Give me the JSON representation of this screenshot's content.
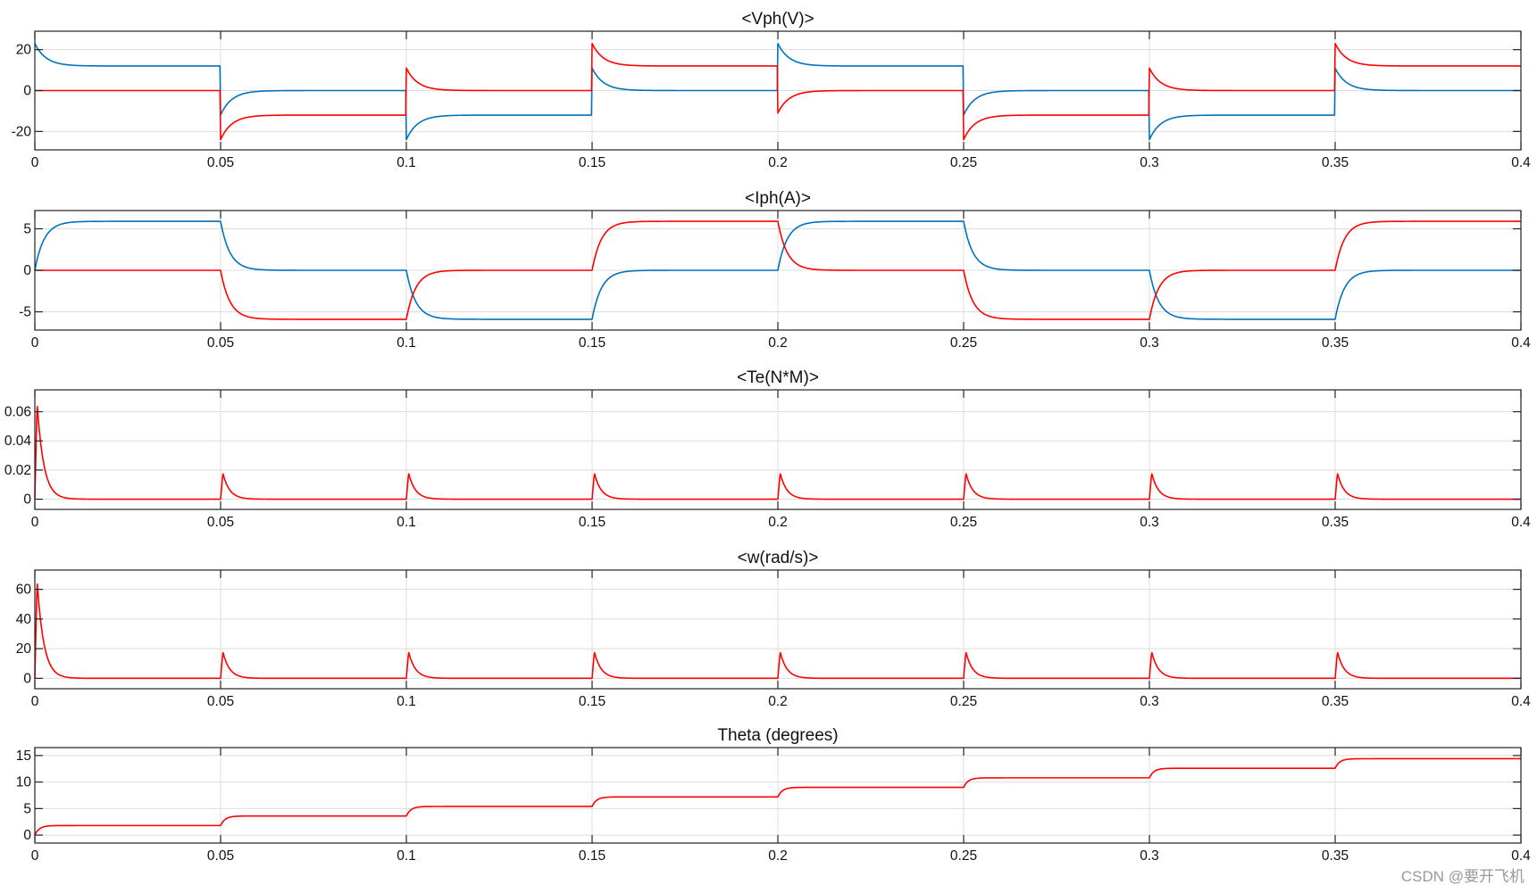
{
  "watermark": "CSDN @要开飞机",
  "colors": {
    "blue": "#0072BD",
    "red": "#FF0000"
  },
  "chart_data": [
    {
      "type": "line",
      "title": "<Vph(V)>",
      "xlim": [
        0,
        0.4
      ],
      "ylim": [
        -29,
        29
      ],
      "xticks": [
        0,
        0.05,
        0.1,
        0.15,
        0.2,
        0.25,
        0.3,
        0.35,
        0.4
      ],
      "xtick_labels": [
        "0",
        "0.05",
        "0.1",
        "0.15",
        "0.2",
        "0.25",
        "0.3",
        "0.35",
        "0.4"
      ],
      "yticks": [
        20,
        0,
        -20
      ],
      "ytick_labels": [
        "20",
        "0",
        "-20"
      ],
      "grid": true,
      "series": [
        {
          "name": "phase voltage (blue)",
          "color": "#0072BD",
          "kind": "segments",
          "tau": 0.003,
          "segments": [
            {
              "t0": 0,
              "t1": 0.05,
              "base": 12,
              "kick": 11
            },
            {
              "t0": 0.05,
              "t1": 0.1,
              "base": 0,
              "kick": -12
            },
            {
              "t0": 0.1,
              "t1": 0.15,
              "base": -12,
              "kick": -12
            },
            {
              "t0": 0.15,
              "t1": 0.2,
              "base": 0,
              "kick": 11
            },
            {
              "t0": 0.2,
              "t1": 0.25,
              "base": 12,
              "kick": 11
            },
            {
              "t0": 0.25,
              "t1": 0.3,
              "base": 0,
              "kick": -12
            },
            {
              "t0": 0.3,
              "t1": 0.35,
              "base": -12,
              "kick": -12
            },
            {
              "t0": 0.35,
              "t1": 0.4,
              "base": 0,
              "kick": 11
            }
          ]
        },
        {
          "name": "phase voltage (red)",
          "color": "#FF0000",
          "kind": "segments",
          "tau": 0.003,
          "segments": [
            {
              "t0": 0,
              "t1": 0.05,
              "base": 0,
              "kick": 0
            },
            {
              "t0": 0.05,
              "t1": 0.1,
              "base": -12,
              "kick": -12
            },
            {
              "t0": 0.1,
              "t1": 0.15,
              "base": 0,
              "kick": 11
            },
            {
              "t0": 0.15,
              "t1": 0.2,
              "base": 12,
              "kick": 11
            },
            {
              "t0": 0.2,
              "t1": 0.25,
              "base": 0,
              "kick": -11
            },
            {
              "t0": 0.25,
              "t1": 0.3,
              "base": -12,
              "kick": -12
            },
            {
              "t0": 0.3,
              "t1": 0.35,
              "base": 0,
              "kick": 11
            },
            {
              "t0": 0.35,
              "t1": 0.4,
              "base": 12,
              "kick": 11
            }
          ]
        }
      ]
    },
    {
      "type": "line",
      "title": "<Iph(A)>",
      "xlim": [
        0,
        0.4
      ],
      "ylim": [
        -7.2,
        7.2
      ],
      "xticks": [
        0,
        0.05,
        0.1,
        0.15,
        0.2,
        0.25,
        0.3,
        0.35,
        0.4
      ],
      "xtick_labels": [
        "0",
        "0.05",
        "0.1",
        "0.15",
        "0.2",
        "0.25",
        "0.3",
        "0.35",
        "0.4"
      ],
      "yticks": [
        5,
        0,
        -5
      ],
      "ytick_labels": [
        "5",
        "0",
        "-5"
      ],
      "grid": true,
      "series": [
        {
          "name": "phase current (blue)",
          "color": "#0072BD",
          "kind": "rl",
          "tau": 0.0025,
          "initial": 0,
          "steps": [
            {
              "t": 0,
              "v": 5.9
            },
            {
              "t": 0.05,
              "v": 0
            },
            {
              "t": 0.1,
              "v": -5.9
            },
            {
              "t": 0.15,
              "v": 0
            },
            {
              "t": 0.2,
              "v": 5.9
            },
            {
              "t": 0.25,
              "v": 0
            },
            {
              "t": 0.3,
              "v": -5.9
            },
            {
              "t": 0.35,
              "v": 0
            }
          ]
        },
        {
          "name": "phase current (red)",
          "color": "#FF0000",
          "kind": "rl",
          "tau": 0.0025,
          "initial": 0,
          "steps": [
            {
              "t": 0,
              "v": 0
            },
            {
              "t": 0.05,
              "v": -5.9
            },
            {
              "t": 0.1,
              "v": 0
            },
            {
              "t": 0.15,
              "v": 5.9
            },
            {
              "t": 0.2,
              "v": 0
            },
            {
              "t": 0.25,
              "v": -5.9
            },
            {
              "t": 0.3,
              "v": 0
            },
            {
              "t": 0.35,
              "v": 5.9
            }
          ]
        }
      ]
    },
    {
      "type": "line",
      "title": "<Te(N*M)>",
      "xlim": [
        0,
        0.4
      ],
      "ylim": [
        -0.007,
        0.075
      ],
      "xticks": [
        0,
        0.05,
        0.1,
        0.15,
        0.2,
        0.25,
        0.3,
        0.35,
        0.4
      ],
      "xtick_labels": [
        "0",
        "0.05",
        "0.1",
        "0.15",
        "0.2",
        "0.25",
        "0.3",
        "0.35",
        "0.4"
      ],
      "yticks": [
        0.06,
        0.04,
        0.02,
        0
      ],
      "ytick_labels": [
        "0.06",
        "0.04",
        "0.02",
        "0"
      ],
      "grid": true,
      "series": [
        {
          "name": "electromagnetic torque",
          "color": "#FF0000",
          "kind": "pulses",
          "rise": 0.0006,
          "decay": 0.0018,
          "pulses": [
            {
              "t": 0,
              "amp": 0.066
            },
            {
              "t": 0.05,
              "amp": 0.018
            },
            {
              "t": 0.1,
              "amp": 0.018
            },
            {
              "t": 0.15,
              "amp": 0.018
            },
            {
              "t": 0.2,
              "amp": 0.018
            },
            {
              "t": 0.25,
              "amp": 0.018
            },
            {
              "t": 0.3,
              "amp": 0.018
            },
            {
              "t": 0.35,
              "amp": 0.018
            }
          ]
        }
      ]
    },
    {
      "type": "line",
      "title": "<w(rad/s)>",
      "xlim": [
        0,
        0.4
      ],
      "ylim": [
        -7,
        73
      ],
      "xticks": [
        0,
        0.05,
        0.1,
        0.15,
        0.2,
        0.25,
        0.3,
        0.35,
        0.4
      ],
      "xtick_labels": [
        "0",
        "0.05",
        "0.1",
        "0.15",
        "0.2",
        "0.25",
        "0.3",
        "0.35",
        "0.4"
      ],
      "yticks": [
        60,
        40,
        20,
        0
      ],
      "ytick_labels": [
        "60",
        "40",
        "20",
        "0"
      ],
      "grid": true,
      "series": [
        {
          "name": "rotor speed",
          "color": "#FF0000",
          "kind": "pulses",
          "rise": 0.0006,
          "decay": 0.0018,
          "pulses": [
            {
              "t": 0,
              "amp": 66
            },
            {
              "t": 0.05,
              "amp": 18
            },
            {
              "t": 0.1,
              "amp": 18
            },
            {
              "t": 0.15,
              "amp": 18
            },
            {
              "t": 0.2,
              "amp": 18
            },
            {
              "t": 0.25,
              "amp": 18
            },
            {
              "t": 0.3,
              "amp": 18
            },
            {
              "t": 0.35,
              "amp": 18
            }
          ]
        }
      ]
    },
    {
      "type": "line",
      "title": "Theta (degrees)",
      "xlim": [
        0,
        0.4
      ],
      "ylim": [
        -1.5,
        16.5
      ],
      "xticks": [
        0,
        0.05,
        0.1,
        0.15,
        0.2,
        0.25,
        0.3,
        0.35,
        0.4
      ],
      "xtick_labels": [
        "0",
        "0.05",
        "0.1",
        "0.15",
        "0.2",
        "0.25",
        "0.3",
        "0.35",
        "0.4"
      ],
      "yticks": [
        15,
        10,
        5,
        0
      ],
      "ytick_labels": [
        "15",
        "10",
        "5",
        "0"
      ],
      "grid": true,
      "series": [
        {
          "name": "rotor angle",
          "color": "#FF0000",
          "kind": "rl",
          "tau": 0.0012,
          "initial": 0,
          "steps": [
            {
              "t": 0,
              "v": 1.8
            },
            {
              "t": 0.05,
              "v": 3.6
            },
            {
              "t": 0.1,
              "v": 5.4
            },
            {
              "t": 0.15,
              "v": 7.2
            },
            {
              "t": 0.2,
              "v": 9.0
            },
            {
              "t": 0.25,
              "v": 10.8
            },
            {
              "t": 0.3,
              "v": 12.6
            },
            {
              "t": 0.35,
              "v": 14.4
            }
          ]
        }
      ]
    }
  ]
}
